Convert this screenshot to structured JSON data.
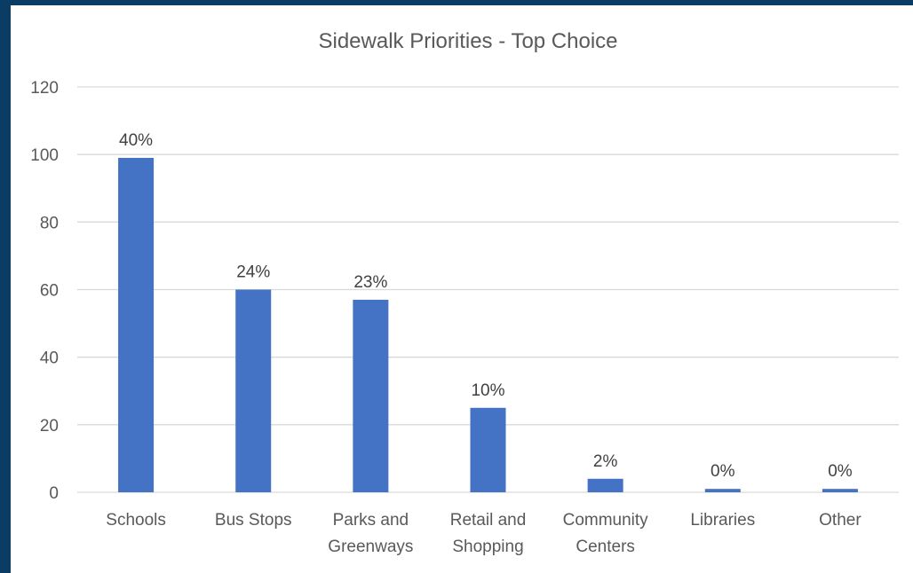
{
  "chart_data": {
    "type": "bar",
    "title": "Sidewalk Priorities - Top Choice",
    "xlabel": "",
    "ylabel": "",
    "ylim": [
      0,
      120
    ],
    "yticks": [
      0,
      20,
      40,
      60,
      80,
      100,
      120
    ],
    "grid": true,
    "legend": "none",
    "bar_color": "#4472c4",
    "categories": [
      [
        "Schools"
      ],
      [
        "Bus Stops"
      ],
      [
        "Parks and",
        "Greenways"
      ],
      [
        "Retail and",
        "Shopping"
      ],
      [
        "Community",
        "Centers"
      ],
      [
        "Libraries"
      ],
      [
        "Other"
      ]
    ],
    "values": [
      99,
      60,
      57,
      25,
      4,
      1,
      1
    ],
    "data_labels": [
      "40%",
      "24%",
      "23%",
      "10%",
      "2%",
      "0%",
      "0%"
    ]
  }
}
